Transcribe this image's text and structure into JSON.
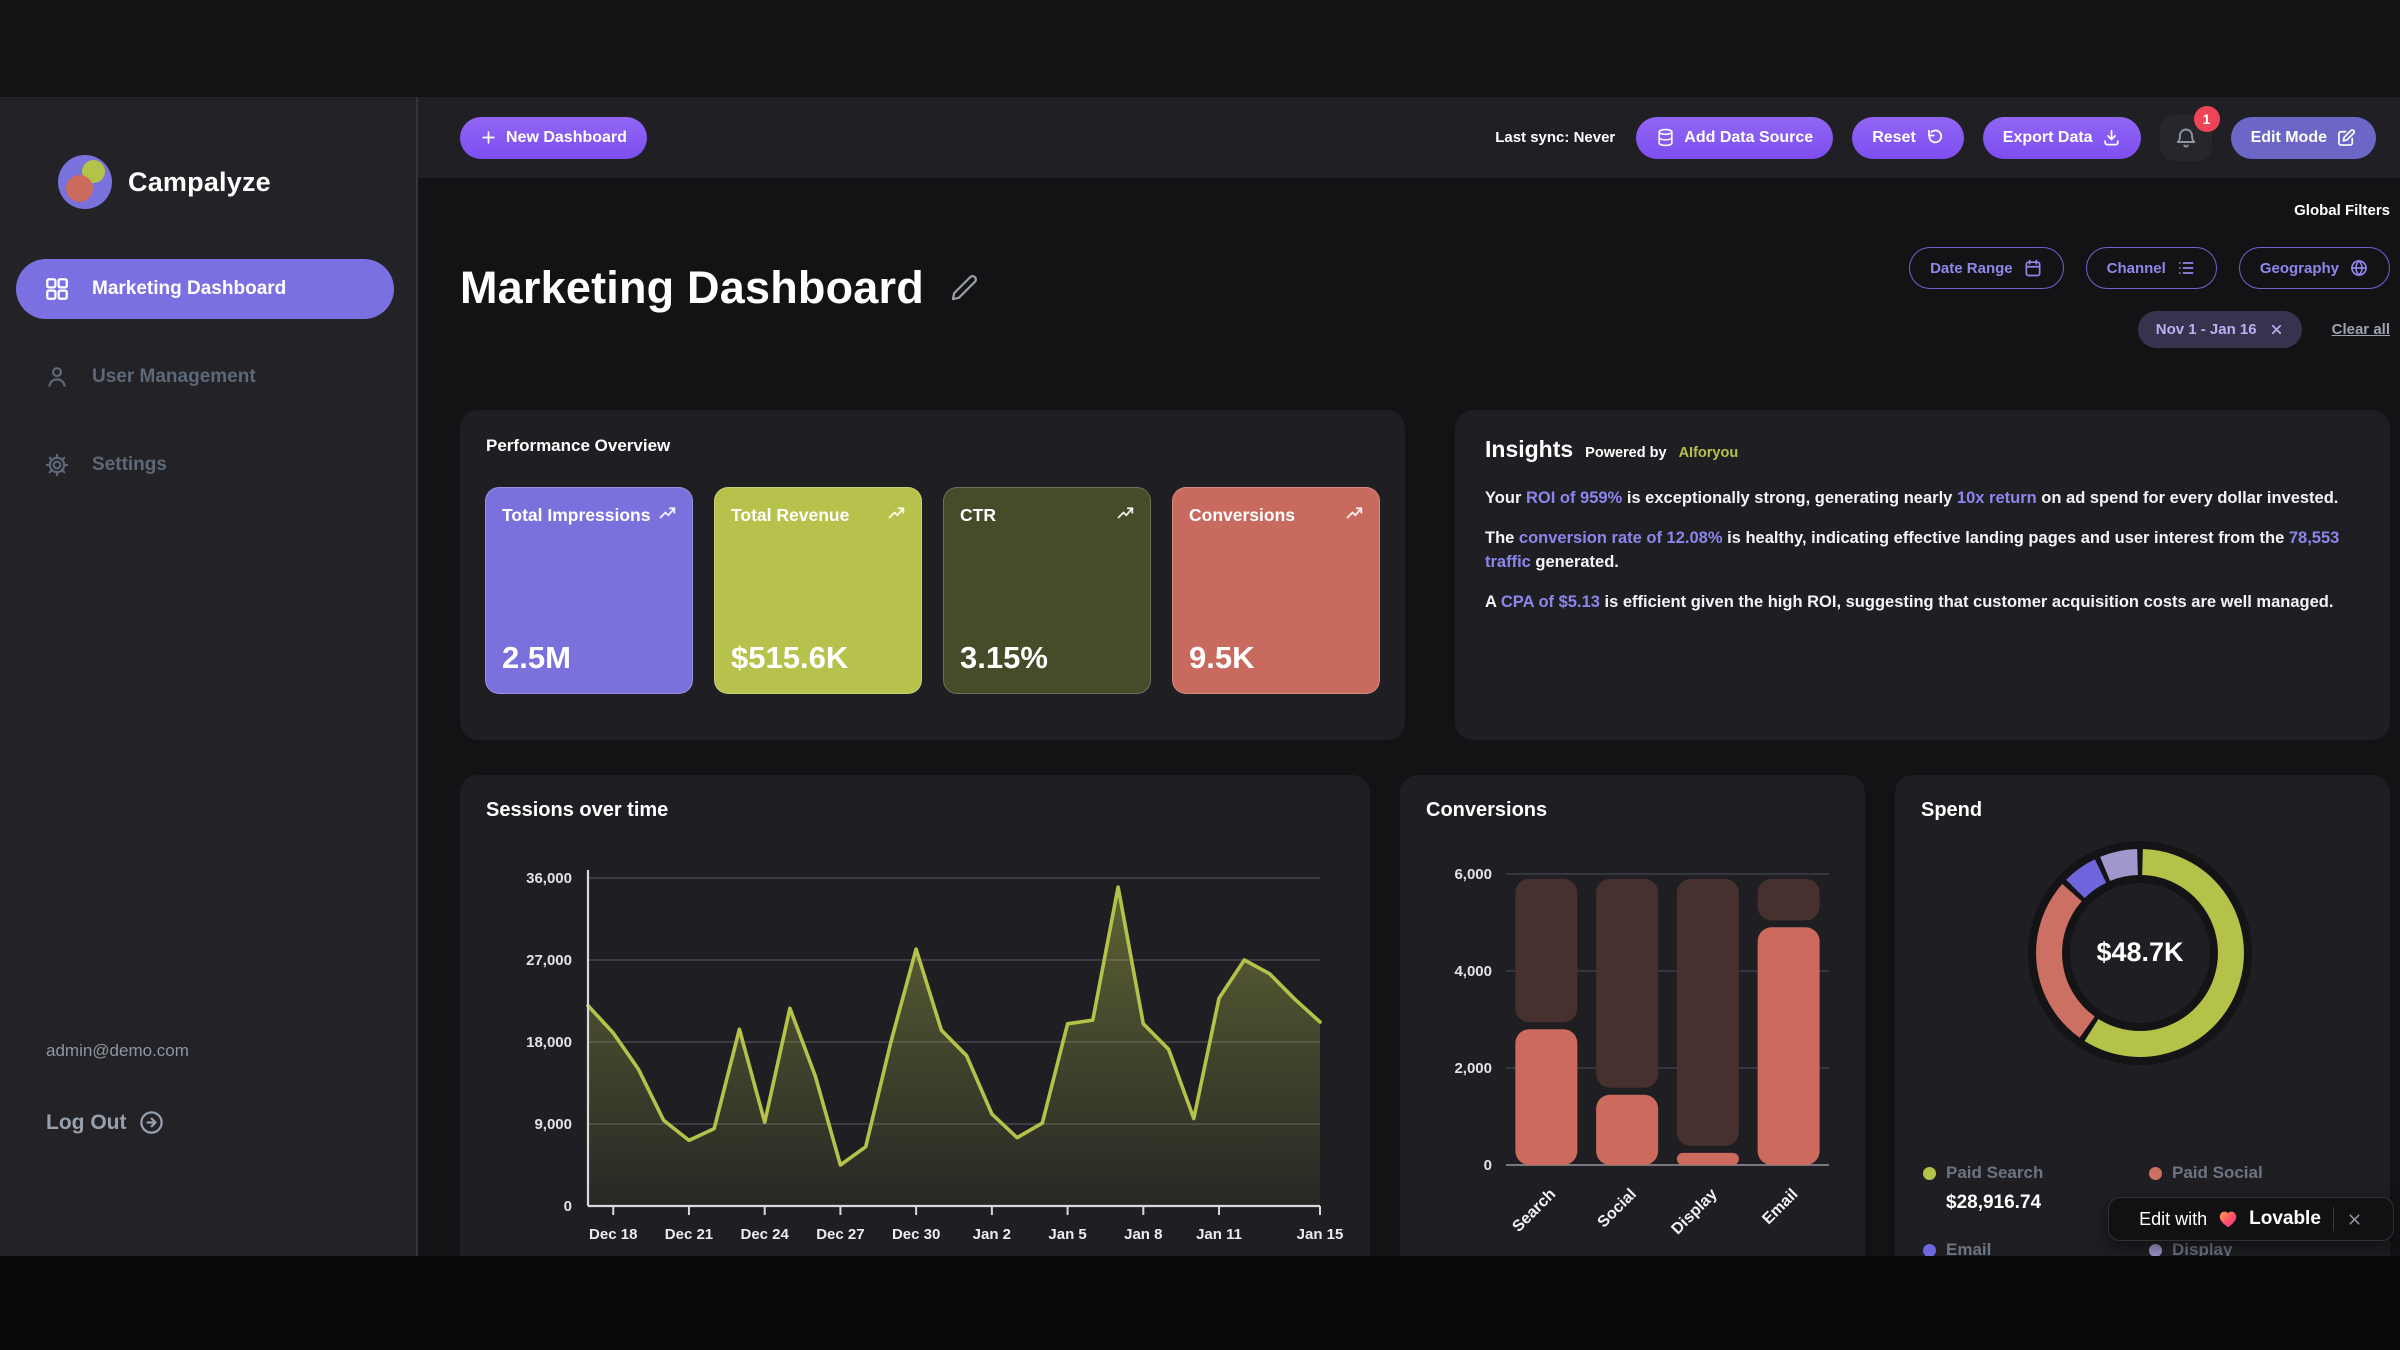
{
  "sidebar": {
    "brand": "Campalyze",
    "items": [
      {
        "label": "Marketing Dashboard",
        "active": true
      },
      {
        "label": "User Management",
        "active": false
      },
      {
        "label": "Settings",
        "active": false
      }
    ],
    "user_email": "admin@demo.com",
    "logout": "Log Out"
  },
  "topbar": {
    "new_dashboard": "New Dashboard",
    "last_sync": "Last sync: Never",
    "add_data_source": "Add Data Source",
    "reset": "Reset",
    "export_data": "Export Data",
    "notification_count": "1",
    "edit_mode": "Edit Mode"
  },
  "header": {
    "title": "Marketing Dashboard",
    "global_filters_label": "Global Filters",
    "filters": [
      {
        "label": "Date Range",
        "icon": "calendar-icon"
      },
      {
        "label": "Channel",
        "icon": "list-icon"
      },
      {
        "label": "Geography",
        "icon": "globe-icon"
      }
    ],
    "active_filter_chip": "Nov 1 - Jan 16",
    "clear_all": "Clear all"
  },
  "kpis": {
    "section_title": "Performance Overview",
    "cards": [
      {
        "label": "Total Impressions",
        "value": "2.5M",
        "color": "#7b71dd"
      },
      {
        "label": "Total Revenue",
        "value": "$515.6K",
        "color": "#b6c24b"
      },
      {
        "label": "CTR",
        "value": "3.15%",
        "color": "#474b2a"
      },
      {
        "label": "Conversions",
        "value": "9.5K",
        "color": "#c96a5f"
      }
    ]
  },
  "insights": {
    "title": "Insights",
    "powered_by": "Powered by",
    "provider": "AIforyou",
    "paragraphs": [
      [
        {
          "t": "Your "
        },
        {
          "t": "ROI of 959%",
          "hl": true
        },
        {
          "t": " is exceptionally strong, generating nearly "
        },
        {
          "t": "10x return",
          "hl": true
        },
        {
          "t": " on ad spend for every dollar invested."
        }
      ],
      [
        {
          "t": "The "
        },
        {
          "t": "conversion rate of 12.08%",
          "hl": true
        },
        {
          "t": " is healthy, indicating effective landing pages and user interest from the "
        },
        {
          "t": "78,553 traffic",
          "hl": true
        },
        {
          "t": " generated."
        }
      ],
      [
        {
          "t": "A "
        },
        {
          "t": "CPA of $5.13",
          "hl": true
        },
        {
          "t": " is efficient given the high ROI, suggesting that customer acquisition costs are well managed."
        }
      ]
    ]
  },
  "chart_data": [
    {
      "id": "sessions",
      "type": "area",
      "title": "Sessions over time",
      "x": [
        "Dec 17",
        "Dec 18",
        "Dec 19",
        "Dec 20",
        "Dec 21",
        "Dec 22",
        "Dec 23",
        "Dec 24",
        "Dec 25",
        "Dec 26",
        "Dec 27",
        "Dec 28",
        "Dec 29",
        "Dec 30",
        "Dec 31",
        "Jan 1",
        "Jan 2",
        "Jan 3",
        "Jan 4",
        "Jan 5",
        "Jan 6",
        "Jan 7",
        "Jan 8",
        "Jan 9",
        "Jan 10",
        "Jan 11",
        "Jan 12",
        "Jan 13",
        "Jan 14",
        "Jan 15"
      ],
      "values": [
        22000,
        19000,
        15000,
        9400,
        7200,
        8500,
        19400,
        9200,
        21700,
        14300,
        4500,
        6500,
        18000,
        28200,
        19300,
        16500,
        10100,
        7500,
        9100,
        20000,
        20400,
        35000,
        20000,
        17200,
        9600,
        22800,
        27000,
        25500,
        22700,
        20200
      ],
      "x_tick_indices": [
        1,
        4,
        7,
        10,
        13,
        16,
        19,
        22,
        25,
        29
      ],
      "y_ticks": [
        0,
        9000,
        18000,
        27000,
        36000
      ],
      "y_tick_labels": [
        "0",
        "9,000",
        "18,000",
        "27,000",
        "36,000"
      ],
      "ylim": [
        0,
        36000
      ],
      "grid": true,
      "line_color": "#b5c24a"
    },
    {
      "id": "conversions",
      "type": "bar",
      "title": "Conversions",
      "categories": [
        "Search",
        "Social",
        "Display",
        "Email"
      ],
      "values": [
        2800,
        1450,
        250,
        4900
      ],
      "track_max": 5900,
      "y_ticks": [
        0,
        2000,
        4000,
        6000
      ],
      "y_tick_labels": [
        "0",
        "2,000",
        "4,000",
        "6,000"
      ],
      "ylim": [
        0,
        6000
      ],
      "grid": true,
      "bar_color": "#cd6a5e",
      "track_color": "#46312e"
    },
    {
      "id": "spend",
      "type": "pie",
      "title": "Spend",
      "center_label": "$48.7K",
      "legend_position": "bottom",
      "segments": [
        {
          "label": "Paid Search",
          "pct": 59.4,
          "color": "#b5c24a",
          "value_text": "$28,916.74"
        },
        {
          "label": "Paid Social",
          "pct": 27.6,
          "color": "#cd7064",
          "value_text": ""
        },
        {
          "label": "Email",
          "pct": 6.3,
          "color": "#6f66dd",
          "value_text": ""
        },
        {
          "label": "Display",
          "pct": 6.7,
          "color": "#a197cc",
          "value_text": ""
        }
      ]
    }
  ],
  "overlay": {
    "edit_with": "Edit with",
    "brand": "Lovable"
  }
}
